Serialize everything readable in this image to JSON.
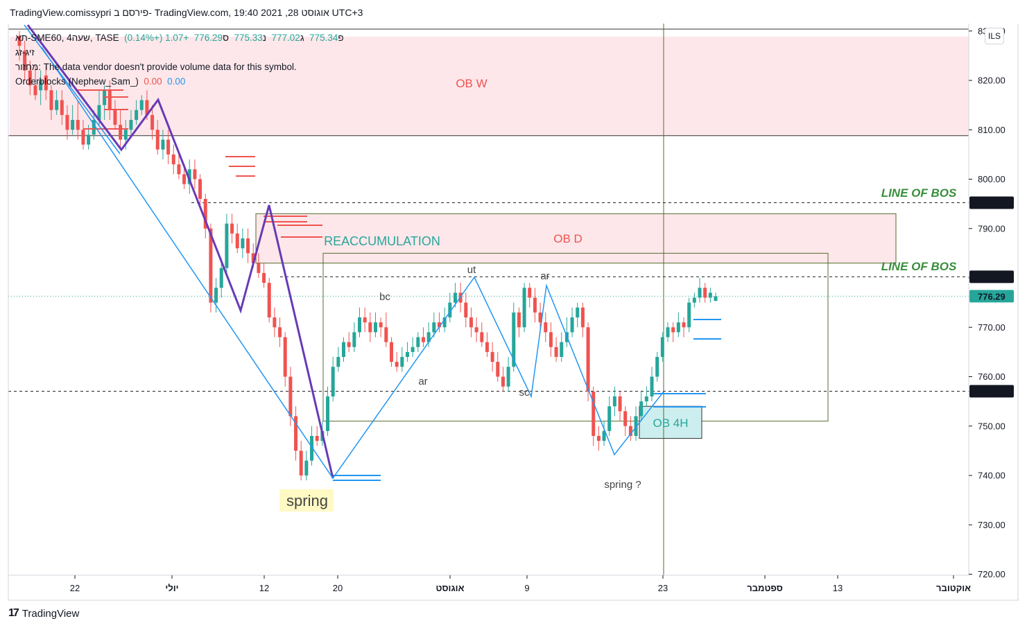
{
  "header": {
    "title": "TradingView.comissypri פירסם ב- TradingView.com, 19:40 2021 ,28 אוגוסט UTC+3"
  },
  "legend": {
    "symbol": "תא-SME60, 4שעה, TASE",
    "open_label": "פ",
    "open": "775.34",
    "high_label": "ג",
    "high": "777.02",
    "low_label": "נ",
    "low": "775.33",
    "close_label": "ס",
    "close": "776.29",
    "change": "+1.07 (+0.14%)",
    "line2": "זיג-זג",
    "line3": "מחזור: The data vendor doesn't provide volume data for this symbol.",
    "indicator": "Orderblocks (Nephew_Sam_)",
    "ind_val1": "0.00",
    "ind_val2": "0.00"
  },
  "currency": "ILS",
  "footer": {
    "brand": "TradingView",
    "logo": "17"
  },
  "colors": {
    "up": "#26a69a",
    "down": "#ef5350",
    "zigzag": "#673ab7",
    "wyckoff": "#2196f3",
    "green_text": "#388e3c",
    "ob_fill": "#fde7ea",
    "ob4h_fill": "#cdeeee"
  },
  "chart_data": {
    "type": "candlestick",
    "symbol": "תא-SME60",
    "interval": "4שעה",
    "ylim": [
      720,
      830
    ],
    "y_ticks": [
      "720.00",
      "730.00",
      "740.00",
      "750.00",
      "760.00",
      "770.00",
      "780.00",
      "790.00",
      "800.00",
      "810.00",
      "820.00",
      "830.00"
    ],
    "x_ticks": [
      "22",
      "יולי",
      "12",
      "20",
      "אוגוסט",
      "9",
      "23",
      "ספטמבר",
      "13",
      "אוקטובר"
    ],
    "price_labels": [
      {
        "value": 795.23,
        "text": "795.23"
      },
      {
        "value": 780.23,
        "text": "780.23"
      },
      {
        "value": 776.29,
        "text": "776.29",
        "current": true
      },
      {
        "value": 757.05,
        "text": "757.05"
      }
    ],
    "annotations": [
      {
        "text": "OB W",
        "color": "#ef5350"
      },
      {
        "text": "OB D",
        "color": "#ef5350"
      },
      {
        "text": "LINE OF BOS",
        "color": "#388e3c"
      },
      {
        "text": "LINE OF BOS",
        "color": "#388e3c"
      },
      {
        "text": "REACCUMULATION",
        "color": "#26a69a"
      },
      {
        "text": "bc",
        "color": "#444"
      },
      {
        "text": "ut",
        "color": "#444"
      },
      {
        "text": "ar",
        "color": "#444"
      },
      {
        "text": "ar",
        "color": "#444"
      },
      {
        "text": "sc",
        "color": "#444"
      },
      {
        "text": "spring",
        "color": "#444"
      },
      {
        "text": "spring ?",
        "color": "#444"
      },
      {
        "text": "OB 4H",
        "color": "#26a69a"
      }
    ],
    "zones": [
      {
        "name": "OB W",
        "y": [
          808.8,
          830
        ]
      },
      {
        "name": "OB D",
        "y": [
          783,
          793
        ]
      },
      {
        "name": "REACCUMULATION",
        "y": [
          751,
          785
        ]
      },
      {
        "name": "OB 4H",
        "y": [
          747.5,
          754
        ]
      }
    ],
    "candles": [
      [
        829,
        827,
        830,
        824
      ],
      [
        826,
        822,
        828,
        820
      ],
      [
        822,
        819,
        824,
        817
      ],
      [
        819,
        817,
        823,
        816
      ],
      [
        818,
        820,
        822,
        815
      ],
      [
        821,
        818,
        823,
        816
      ],
      [
        818,
        814,
        819,
        812
      ],
      [
        814,
        816,
        818,
        813
      ],
      [
        816,
        813,
        818,
        811
      ],
      [
        813,
        810,
        815,
        808
      ],
      [
        810,
        812,
        815,
        809
      ],
      [
        812,
        810,
        816,
        808
      ],
      [
        810,
        807,
        812,
        806
      ],
      [
        807,
        809,
        811,
        806
      ],
      [
        809,
        812,
        814,
        808
      ],
      [
        812,
        815,
        818,
        811
      ],
      [
        815,
        818,
        819,
        812
      ],
      [
        818,
        814,
        820,
        812
      ],
      [
        814,
        811,
        816,
        810
      ],
      [
        811,
        808,
        814,
        806
      ],
      [
        808,
        810,
        812,
        806
      ],
      [
        810,
        812,
        814,
        809
      ],
      [
        812,
        814,
        816,
        811
      ],
      [
        814,
        816,
        817,
        813
      ],
      [
        816,
        813,
        818,
        812
      ],
      [
        813,
        810,
        815,
        808
      ],
      [
        810,
        806,
        812,
        805
      ],
      [
        806,
        808,
        810,
        804
      ],
      [
        808,
        805,
        810,
        803
      ],
      [
        805,
        803,
        807,
        801
      ],
      [
        803,
        801,
        805,
        800
      ],
      [
        801,
        799,
        803,
        798
      ],
      [
        799,
        802,
        804,
        797
      ],
      [
        802,
        800,
        804,
        798
      ],
      [
        800,
        796,
        801,
        794
      ],
      [
        796,
        790,
        797,
        788
      ],
      [
        790,
        775,
        791,
        773
      ],
      [
        775,
        778,
        780,
        773
      ],
      [
        778,
        782,
        784,
        776
      ],
      [
        782,
        791,
        793,
        781
      ],
      [
        791,
        789,
        793,
        787
      ],
      [
        789,
        786,
        791,
        785
      ],
      [
        786,
        788,
        790,
        784
      ],
      [
        788,
        785,
        790,
        783
      ],
      [
        785,
        783,
        787,
        782
      ],
      [
        783,
        781,
        785,
        780
      ],
      [
        781,
        779,
        783,
        778
      ],
      [
        779,
        772,
        780,
        771
      ],
      [
        772,
        770,
        774,
        768
      ],
      [
        770,
        768,
        772,
        766
      ],
      [
        768,
        760,
        769,
        758
      ],
      [
        760,
        752,
        762,
        750
      ],
      [
        752,
        745,
        754,
        743
      ],
      [
        745,
        740,
        747,
        739
      ],
      [
        740,
        743,
        745,
        739
      ],
      [
        743,
        748,
        750,
        742
      ],
      [
        748,
        747,
        750,
        746
      ],
      [
        747,
        749,
        751,
        746
      ],
      [
        749,
        756,
        758,
        748
      ],
      [
        756,
        762,
        764,
        755
      ],
      [
        762,
        764,
        766,
        761
      ],
      [
        764,
        767,
        768,
        763
      ],
      [
        767,
        766,
        769,
        765
      ],
      [
        766,
        769,
        771,
        765
      ],
      [
        769,
        772,
        774,
        768
      ],
      [
        772,
        771,
        774,
        769
      ],
      [
        771,
        769,
        773,
        767
      ],
      [
        769,
        771,
        773,
        768
      ],
      [
        771,
        770,
        772,
        768
      ],
      [
        770,
        767,
        773,
        766
      ],
      [
        767,
        763,
        768,
        762
      ],
      [
        763,
        762,
        765,
        761
      ],
      [
        762,
        764,
        766,
        761
      ],
      [
        764,
        765,
        767,
        763
      ],
      [
        765,
        766,
        768,
        764
      ],
      [
        766,
        768,
        769,
        765
      ],
      [
        768,
        767,
        770,
        766
      ],
      [
        767,
        769,
        771,
        766
      ],
      [
        769,
        771,
        773,
        768
      ],
      [
        771,
        770,
        773,
        769
      ],
      [
        770,
        772,
        774,
        769
      ],
      [
        772,
        775,
        777,
        771
      ],
      [
        775,
        777,
        779,
        774
      ],
      [
        777,
        775,
        779,
        773
      ],
      [
        775,
        772,
        777,
        770
      ],
      [
        772,
        770,
        774,
        768
      ],
      [
        770,
        769,
        772,
        767
      ],
      [
        769,
        767,
        771,
        766
      ],
      [
        767,
        765,
        769,
        764
      ],
      [
        765,
        763,
        767,
        761
      ],
      [
        763,
        760,
        765,
        759
      ],
      [
        760,
        758,
        762,
        757
      ],
      [
        758,
        762,
        764,
        757
      ],
      [
        762,
        773,
        775,
        761
      ],
      [
        773,
        770,
        774,
        768
      ],
      [
        770,
        778,
        779,
        769
      ],
      [
        778,
        776,
        779,
        774
      ],
      [
        776,
        773,
        778,
        771
      ],
      [
        773,
        771,
        775,
        769
      ],
      [
        771,
        769,
        773,
        767
      ],
      [
        769,
        766,
        771,
        764
      ],
      [
        766,
        764,
        768,
        763
      ],
      [
        764,
        767,
        769,
        763
      ],
      [
        767,
        769,
        772,
        766
      ],
      [
        769,
        772,
        774,
        768
      ],
      [
        772,
        774,
        775,
        770
      ],
      [
        774,
        770,
        775,
        768
      ],
      [
        770,
        757,
        771,
        755
      ],
      [
        757,
        748,
        758,
        746
      ],
      [
        748,
        747,
        750,
        745
      ],
      [
        747,
        749,
        751,
        746
      ],
      [
        749,
        754,
        756,
        748
      ],
      [
        754,
        756,
        758,
        752
      ],
      [
        756,
        753,
        757,
        751
      ],
      [
        753,
        750,
        754,
        748
      ],
      [
        750,
        748,
        752,
        747
      ],
      [
        748,
        752,
        754,
        747
      ],
      [
        752,
        755,
        757,
        751
      ],
      [
        755,
        756,
        758,
        754
      ],
      [
        756,
        760,
        762,
        755
      ],
      [
        760,
        764,
        765,
        759
      ],
      [
        764,
        768,
        769,
        763
      ],
      [
        768,
        770,
        771,
        767
      ],
      [
        770,
        769,
        771,
        767
      ],
      [
        769,
        771,
        773,
        768
      ],
      [
        771,
        770,
        772,
        768
      ],
      [
        770,
        775,
        776,
        769
      ],
      [
        775,
        776,
        777,
        774
      ],
      [
        776,
        778,
        780,
        775
      ],
      [
        778,
        776,
        779,
        775
      ],
      [
        776,
        777,
        778,
        775
      ],
      [
        775.34,
        776.29,
        777.02,
        775.33
      ]
    ]
  }
}
